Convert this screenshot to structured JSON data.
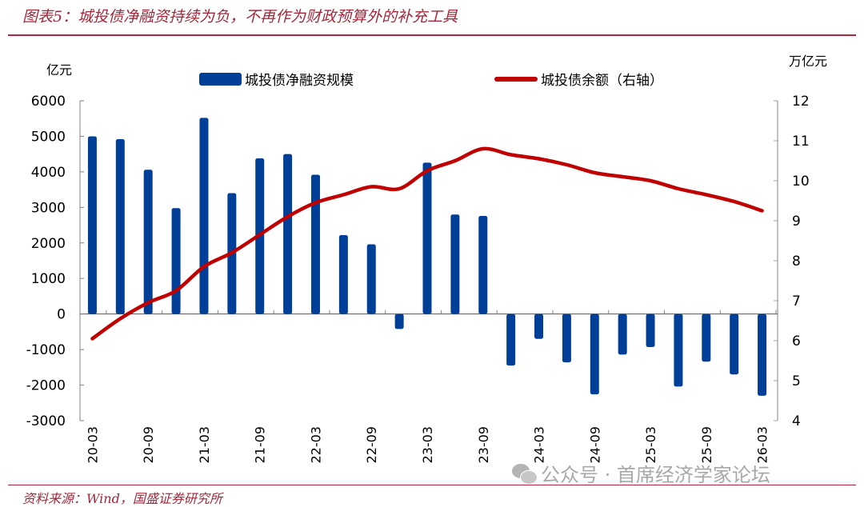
{
  "title": "图表5：城投债净融资持续为负，不再作为财政预算外的补充工具",
  "source": "资料来源：Wind，国盛证券研究所",
  "watermark": "公众号 · 首席经济学家论坛",
  "colors": {
    "bar": "#003f98",
    "line": "#c00000",
    "accent": "#a3263a"
  },
  "chart_data": {
    "type": "bar",
    "title": "图表5：城投债净融资持续为负，不再作为财政预算外的补充工具",
    "left_unit": "亿元",
    "right_unit": "万亿元",
    "ylim": [
      -3000,
      6000
    ],
    "y2lim": [
      4,
      12
    ],
    "yticks": [
      "6000",
      "5000",
      "4000",
      "3000",
      "2000",
      "1000",
      "0",
      "-1000",
      "-2000",
      "-3000"
    ],
    "y2ticks": [
      "12",
      "11",
      "10",
      "9",
      "8",
      "7",
      "6",
      "5",
      "4"
    ],
    "xtick_labels": [
      "20-03",
      "20-09",
      "21-03",
      "21-09",
      "22-03",
      "22-09",
      "23-03",
      "23-09",
      "24-03",
      "24-09",
      "25-03",
      "25-09",
      "26-03"
    ],
    "categories": [
      "20-03",
      "20-06",
      "20-09",
      "20-12",
      "21-03",
      "21-06",
      "21-09",
      "21-12",
      "22-03",
      "22-06",
      "22-09",
      "22-12",
      "23-03",
      "23-06",
      "23-09",
      "23-12",
      "24-03",
      "24-06",
      "24-09",
      "24-12",
      "25-03",
      "25-06",
      "25-09",
      "25-12",
      "26-03"
    ],
    "series": [
      {
        "name": "城投债净融资规模",
        "type": "bar",
        "axis": "left",
        "values": [
          5000,
          4920,
          4060,
          2980,
          5520,
          3400,
          4380,
          4500,
          3920,
          2220,
          1960,
          -420,
          4260,
          2800,
          2760,
          -1450,
          -700,
          -1360,
          -2260,
          -1140,
          -930,
          -2040,
          -1340,
          -1700,
          -2300
        ]
      },
      {
        "name": "城投债余额（右轴）",
        "type": "line",
        "axis": "right",
        "values": [
          6.05,
          6.55,
          6.95,
          7.25,
          7.85,
          8.2,
          8.65,
          9.1,
          9.45,
          9.65,
          9.85,
          9.8,
          10.25,
          10.5,
          10.8,
          10.65,
          10.55,
          10.4,
          10.2,
          10.1,
          10.0,
          9.8,
          9.65,
          9.48,
          9.25
        ]
      }
    ],
    "legend": "top-center",
    "grid": false
  }
}
